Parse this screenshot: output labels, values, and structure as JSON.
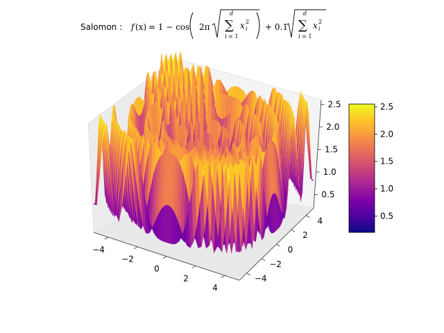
{
  "chart_data": {
    "type": "surface3d",
    "title": {
      "prefix": "Salomon : ",
      "f": "f",
      "x": "(x)",
      "eq1": " = 1 − cos",
      "two_pi": "2π",
      "sum": "∑",
      "sum_top": "d",
      "sum_bottom": "i = 1",
      "xi": "x",
      "sub_i": "i",
      "sup_2": "2",
      "plus": "+ 0.1"
    },
    "function": "1 - cos(2*pi*sqrt(x1^2+x2^2)) + 0.1*sqrt(x1^2+x2^2)",
    "x_range": [
      -5,
      5
    ],
    "y_range": [
      -5,
      5
    ],
    "z_range": [
      0.2,
      2.6
    ],
    "x_ticks": [
      "−4",
      "−2",
      "0",
      "2",
      "4"
    ],
    "x_tick_values": [
      -4,
      -2,
      0,
      2,
      4
    ],
    "y_ticks": [
      "−4",
      "−2",
      "0",
      "2",
      "4"
    ],
    "y_tick_values": [
      -4,
      -2,
      0,
      2,
      4
    ],
    "z_ticks": [
      "0.5",
      "1.0",
      "1.5",
      "2.0",
      "2.5"
    ],
    "z_tick_values": [
      0.5,
      1.0,
      1.5,
      2.0,
      2.5
    ],
    "colormap": "plasma",
    "colorbar": {
      "range": [
        0.2,
        2.55
      ],
      "ticks": [
        "0.5",
        "1.0",
        "1.5",
        "2.0",
        "2.5"
      ],
      "tick_values": [
        0.5,
        1.0,
        1.5,
        2.0,
        2.5
      ]
    },
    "grid": true,
    "pane_color": "#f2f2f2",
    "gridline_color": "#e6e6e6"
  }
}
